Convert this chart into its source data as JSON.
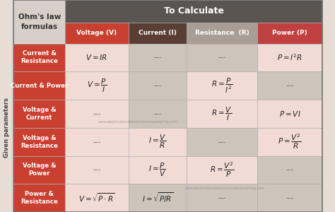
{
  "title_cell": "Ohm's law\nformulas",
  "to_calculate": "To Calculate",
  "col_headers": [
    "Voltage (V)",
    "Current (I)",
    "Resistance  (R)",
    "Power (P)"
  ],
  "row_headers": [
    "Current &\nResistance",
    "Current & Power",
    "Voltage &\nCurrent",
    "Voltage &\nResistance",
    "Voltage &\nPower",
    "Power &\nResistance"
  ],
  "side_label": "Given parameters",
  "watermark": "www.electricalandelectronicsengineering.com",
  "col_header_colors": [
    "#c94030",
    "#5a3e35",
    "#a89e96",
    "#c04040"
  ],
  "row_header_color": "#c94030",
  "top_header_color": "#d8cfc8",
  "top_header_text_color": "#333333",
  "to_calc_bg": "#5a5550",
  "to_calc_text": "#ffffff",
  "side_bg": "#e8ddd5",
  "side_text": "#555555",
  "light_pink": "#f2dbd5",
  "gray_beige": "#cdc5bc",
  "cell_text_color": "#222222",
  "dash_color": "#666666",
  "figsize": [
    4.74,
    3.0
  ],
  "dpi": 100,
  "cells": [
    [
      "$V = IR$",
      "---",
      "---",
      "$P = I^2R$"
    ],
    [
      "$V = \\dfrac{P}{I}$",
      "---",
      "$R = \\dfrac{P}{I^2}$",
      "---"
    ],
    [
      "---",
      "---",
      "$R = \\dfrac{V}{I}$",
      "$P = VI$"
    ],
    [
      "---",
      "$I = \\dfrac{V}{R}$",
      "---",
      "$P = \\dfrac{V^2}{R}$"
    ],
    [
      "---",
      "$I = \\dfrac{P}{V}$",
      "$R = \\dfrac{V^2}{P}$",
      "---"
    ],
    [
      "$V = \\sqrt{P \\cdot R}$",
      "$I = \\sqrt{P/R}$",
      "---",
      "---"
    ]
  ],
  "cell_bg": [
    [
      "light_pink",
      "gray_beige",
      "gray_beige",
      "light_pink"
    ],
    [
      "light_pink",
      "gray_beige",
      "light_pink",
      "gray_beige"
    ],
    [
      "light_pink",
      "gray_beige",
      "light_pink",
      "light_pink"
    ],
    [
      "light_pink",
      "light_pink",
      "gray_beige",
      "light_pink"
    ],
    [
      "light_pink",
      "light_pink",
      "light_pink",
      "gray_beige"
    ],
    [
      "light_pink",
      "gray_beige",
      "gray_beige",
      "gray_beige"
    ]
  ],
  "watermark_rows": [
    2,
    4
  ]
}
